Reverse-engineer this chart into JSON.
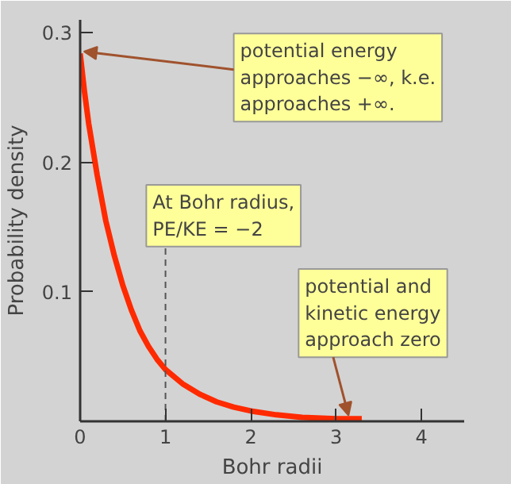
{
  "chart_data": {
    "type": "line",
    "xlabel": "Bohr radii",
    "ylabel": "Probability density",
    "x": [
      0,
      0.05,
      0.1,
      0.2,
      0.3,
      0.4,
      0.5,
      0.6,
      0.7,
      0.8,
      0.9,
      1.0,
      1.2,
      1.4,
      1.6,
      1.8,
      2.0,
      2.3,
      2.6,
      3.0,
      3.3
    ],
    "series": [
      {
        "color": "#ff2a00",
        "values": [
          0.284,
          0.255,
          0.23,
          0.19,
          0.155,
          0.128,
          0.105,
          0.086,
          0.07,
          0.058,
          0.048,
          0.04,
          0.029,
          0.021,
          0.015,
          0.011,
          0.008,
          0.005,
          0.003,
          0.002,
          0.002
        ]
      }
    ],
    "xlim": [
      0,
      4.5
    ],
    "ylim": [
      0,
      0.31
    ],
    "xticks": [
      0,
      1,
      2,
      3,
      4
    ],
    "yticks": [
      0.1,
      0.2,
      0.3
    ],
    "grid": false,
    "marker": "none",
    "line_style": "solid",
    "ref_lines": [
      {
        "axis": "x",
        "value": 1,
        "line_style": "dashed",
        "color": "#555555"
      }
    ],
    "annotations": [
      {
        "text": "At Bohr radius,\nPE/KE = −2",
        "x": 1,
        "y": 0.135
      },
      {
        "text": "potential energy\napproaches −∞, k.e.\napproaches +∞.",
        "x": 0,
        "y": 0.284
      },
      {
        "text": "potential  and\nkinetic energy\napproach zero",
        "x": 3.1,
        "y": 0.003
      }
    ]
  }
}
